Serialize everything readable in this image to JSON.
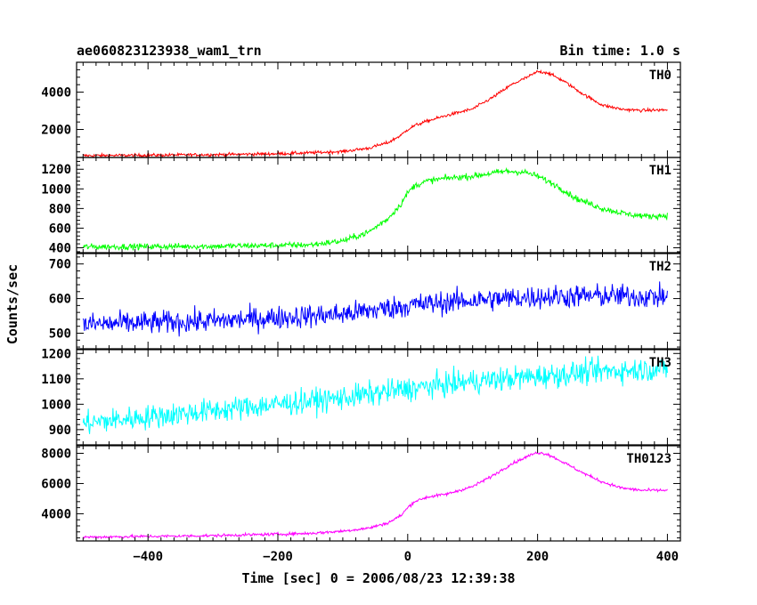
{
  "chart_data": {
    "type": "line",
    "title": "ae060823123938_wam1_trn",
    "subtitle": "Bin time: 1.0 s",
    "xlabel": "Time [sec] 0 = 2006/08/23 12:39:38",
    "ylabel": "Counts/sec",
    "xlim": [
      -510,
      420
    ],
    "x_ticks": [
      -400,
      -200,
      0,
      200,
      400
    ],
    "x_tick_labels": [
      "−400",
      "−200",
      "0",
      "200",
      "400"
    ],
    "grid": false,
    "legend": "panel labels top-right",
    "series": [
      {
        "name": "TH0",
        "color": "#ff0000",
        "ylim": [
          500,
          5600
        ],
        "y_ticks": [
          2000,
          4000
        ],
        "y_tick_labels": [
          "2000",
          "4000"
        ],
        "noise": 60,
        "x": [
          -500,
          -400,
          -300,
          -200,
          -150,
          -100,
          -60,
          -30,
          -10,
          0,
          10,
          30,
          60,
          100,
          130,
          160,
          190,
          200,
          215,
          240,
          270,
          300,
          330,
          360,
          400
        ],
        "values": [
          600,
          620,
          650,
          700,
          750,
          820,
          1000,
          1300,
          1700,
          2000,
          2200,
          2450,
          2750,
          3100,
          3700,
          4400,
          4900,
          5100,
          5050,
          4600,
          3900,
          3300,
          3080,
          3020,
          3050
        ]
      },
      {
        "name": "TH1",
        "color": "#00ff00",
        "ylim": [
          350,
          1320
        ],
        "y_ticks": [
          400,
          600,
          800,
          1000,
          1200
        ],
        "y_tick_labels": [
          "400",
          "600",
          "800",
          "1000",
          "1200"
        ],
        "noise": 22,
        "x": [
          -500,
          -300,
          -150,
          -100,
          -60,
          -30,
          -10,
          0,
          10,
          30,
          60,
          100,
          150,
          180,
          200,
          230,
          260,
          300,
          340,
          370,
          400
        ],
        "values": [
          410,
          415,
          430,
          470,
          560,
          700,
          850,
          960,
          1030,
          1080,
          1110,
          1130,
          1180,
          1170,
          1130,
          1030,
          900,
          800,
          740,
          720,
          730
        ]
      },
      {
        "name": "TH2",
        "color": "#0000ff",
        "ylim": [
          455,
          730
        ],
        "y_ticks": [
          500,
          600,
          700
        ],
        "y_tick_labels": [
          "500",
          "600",
          "700"
        ],
        "noise": 24,
        "x": [
          -500,
          -300,
          -100,
          0,
          100,
          200,
          300,
          400
        ],
        "values": [
          525,
          535,
          555,
          580,
          595,
          605,
          608,
          605
        ]
      },
      {
        "name": "TH3",
        "color": "#00ffff",
        "ylim": [
          840,
          1215
        ],
        "y_ticks": [
          900,
          1000,
          1100,
          1200
        ],
        "y_tick_labels": [
          "900",
          "1000",
          "1100",
          "1200"
        ],
        "noise": 34,
        "x": [
          -500,
          -400,
          -300,
          -200,
          -100,
          0,
          100,
          200,
          300,
          400
        ],
        "values": [
          925,
          950,
          975,
          1000,
          1025,
          1060,
          1090,
          1110,
          1130,
          1140
        ]
      },
      {
        "name": "TH0123",
        "color": "#ff00ff",
        "ylim": [
          2200,
          8500
        ],
        "y_ticks": [
          4000,
          6000,
          8000
        ],
        "y_tick_labels": [
          "4000",
          "6000",
          "8000"
        ],
        "noise": 70,
        "x": [
          -500,
          -400,
          -300,
          -200,
          -150,
          -100,
          -60,
          -30,
          -10,
          0,
          10,
          30,
          60,
          100,
          130,
          160,
          190,
          200,
          215,
          240,
          270,
          300,
          330,
          360,
          400
        ],
        "values": [
          2450,
          2500,
          2550,
          2650,
          2700,
          2850,
          3050,
          3400,
          3900,
          4400,
          4800,
          5100,
          5300,
          5800,
          6500,
          7300,
          7900,
          8050,
          7950,
          7400,
          6700,
          6100,
          5700,
          5550,
          5550
        ]
      }
    ]
  }
}
